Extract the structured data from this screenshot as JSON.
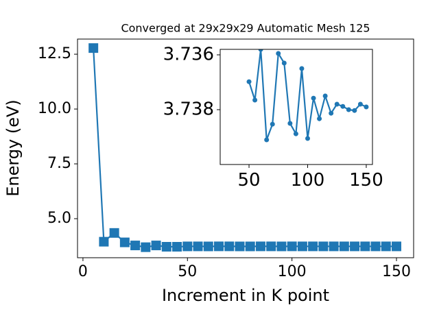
{
  "chart_data": [
    {
      "type": "line",
      "title": "Converged at 29x29x29 Automatic Mesh 125",
      "xlabel": "Increment in K point",
      "ylabel": "Energy (eV)",
      "x": [
        5,
        10,
        15,
        20,
        25,
        30,
        35,
        40,
        45,
        50,
        55,
        60,
        65,
        70,
        75,
        80,
        85,
        90,
        95,
        100,
        105,
        110,
        115,
        120,
        125,
        130,
        135,
        140,
        145,
        150
      ],
      "series": [
        {
          "name": "Energy",
          "color": "#1f77b4",
          "marker": "square",
          "values": [
            12.78,
            3.95,
            4.35,
            3.92,
            3.78,
            3.7,
            3.78,
            3.72,
            3.72,
            3.73698,
            3.73765,
            3.7358,
            3.7391,
            3.73853,
            3.73595,
            3.7363,
            3.7385,
            3.73888,
            3.7365,
            3.73905,
            3.73758,
            3.73833,
            3.7375,
            3.73813,
            3.7378,
            3.73788,
            3.738,
            3.73803,
            3.7378,
            3.7379
          ]
        }
      ],
      "xlim": [
        -2.6,
        158.2
      ],
      "ylim": [
        3.22,
        13.19
      ],
      "xticks": [
        0,
        50,
        100,
        150
      ],
      "yticks": [
        {
          "value": 5,
          "label": "5.0"
        },
        7.5,
        {
          "value": 10,
          "label": "10.0"
        },
        12.5
      ]
    },
    {
      "type": "line",
      "x": [
        50,
        55,
        60,
        65,
        70,
        75,
        80,
        85,
        90,
        95,
        100,
        105,
        110,
        115,
        120,
        125,
        130,
        135,
        140,
        145,
        150
      ],
      "series": [
        {
          "name": "Energy",
          "color": "#1f77b4",
          "marker": "circle",
          "values": [
            3.73698,
            3.73765,
            3.7358,
            3.7391,
            3.73853,
            3.73595,
            3.7363,
            3.7385,
            3.73888,
            3.7365,
            3.73905,
            3.73758,
            3.73833,
            3.7375,
            3.73813,
            3.7378,
            3.73788,
            3.738,
            3.73803,
            3.7378,
            3.7379
          ]
        }
      ],
      "xlim": [
        25.4,
        155.3
      ],
      "ylim": [
        3.74,
        3.7358
      ],
      "xticks": [
        50,
        100,
        150
      ],
      "yticks": [
        3.736,
        3.738
      ]
    }
  ]
}
